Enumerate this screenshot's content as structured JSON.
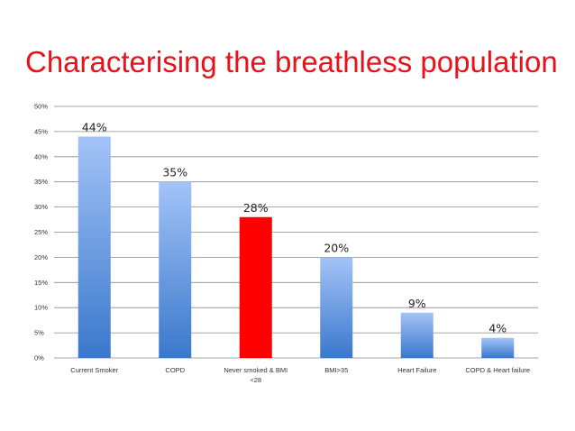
{
  "slide": {
    "title": "Characterising the breathless population"
  },
  "chart_data": {
    "type": "bar",
    "title": "",
    "xlabel": "",
    "ylabel": "",
    "categories": [
      [
        "Current Smoker"
      ],
      [
        "COPD"
      ],
      [
        "Never smoked  & BMI",
        "<28"
      ],
      [
        "BMI>35"
      ],
      [
        "Heart Failure"
      ],
      [
        "COPD & Heart failure"
      ]
    ],
    "values": [
      44,
      35,
      28,
      20,
      9,
      4
    ],
    "data_labels": [
      "44%",
      "35%",
      "28%",
      "20%",
      "9%",
      "4%"
    ],
    "bar_styles": [
      "blue-gradient",
      "blue-gradient",
      "red",
      "blue-gradient",
      "blue-gradient",
      "blue-gradient"
    ],
    "colors": {
      "gradient_top": "#a3c3f7",
      "gradient_bottom": "#3a78cc",
      "highlight": "#ff0000",
      "gridline": "#8a8a8a",
      "title": "#e8121b"
    },
    "ylim": [
      0,
      50
    ],
    "y_ticks": [
      0,
      5,
      10,
      15,
      20,
      25,
      30,
      35,
      40,
      45,
      50
    ],
    "y_tick_labels": [
      "0%",
      "5%",
      "10%",
      "15%",
      "20%",
      "25%",
      "30%",
      "35%",
      "40%",
      "45%",
      "50%"
    ],
    "grid": true,
    "legend": "none"
  }
}
